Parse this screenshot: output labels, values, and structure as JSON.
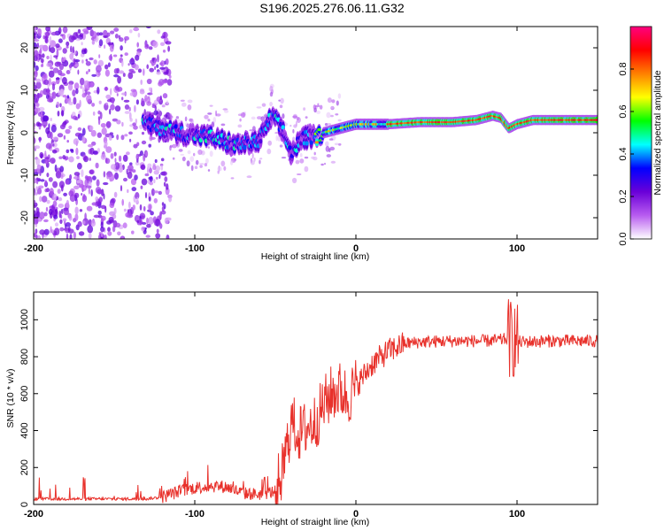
{
  "title": "S196.2025.276.06.11.G32",
  "chart_data": [
    {
      "type": "heatmap",
      "name": "spectrogram",
      "xlabel": "Height of straight line (km)",
      "ylabel": "Frequency (Hz)",
      "xlim": [
        -200,
        150
      ],
      "ylim": [
        -25,
        25
      ],
      "xticks": [
        "-200",
        "-100",
        "0",
        "100"
      ],
      "xtick_values": [
        -200,
        -100,
        0,
        100
      ],
      "yticks": [
        "-20",
        "-10",
        "0",
        "10",
        "20"
      ],
      "ytick_values": [
        -20,
        -10,
        0,
        10,
        20
      ],
      "colorbar": {
        "label": "Normalized spectral amplitude",
        "range": [
          0,
          1
        ],
        "ticks": [
          "0.0",
          "0.2",
          "0.4",
          "0.6",
          "0.8"
        ],
        "tick_values": [
          0.0,
          0.2,
          0.4,
          0.6,
          0.8
        ],
        "colors": [
          "#ffffff",
          "#b85cf0",
          "#6a00d8",
          "#0000ff",
          "#00ffff",
          "#00ff00",
          "#ffff00",
          "#ff8000",
          "#ff0000",
          "#ff0080"
        ]
      },
      "ridge": {
        "x": [
          -130,
          -110,
          -90,
          -75,
          -60,
          -52,
          -45,
          -40,
          -35,
          -30,
          -25,
          -20,
          -10,
          0,
          10,
          20,
          40,
          60,
          75,
          80,
          85,
          90,
          95,
          100,
          110,
          130,
          150
        ],
        "y": [
          2,
          0,
          -1,
          -3,
          -2,
          4,
          0,
          -5,
          -2,
          -1,
          -1,
          0,
          1,
          2,
          2,
          2,
          2.5,
          2.5,
          3,
          3.5,
          4,
          3.5,
          1,
          2,
          3,
          3,
          3
        ]
      }
    },
    {
      "type": "line",
      "name": "snr",
      "xlabel": "Height of straight line (km)",
      "ylabel": "SNR (10 * v/v)",
      "xlim": [
        -200,
        150
      ],
      "ylim": [
        0,
        1150
      ],
      "xticks": [
        "-200",
        "-100",
        "0",
        "100"
      ],
      "xtick_values": [
        -200,
        -100,
        0,
        100
      ],
      "yticks": [
        "0",
        "200",
        "400",
        "600",
        "800",
        "1000"
      ],
      "ytick_values": [
        0,
        200,
        400,
        600,
        800,
        1000
      ],
      "color": "#e8312b",
      "envelope": {
        "x": [
          -200,
          -160,
          -130,
          -120,
          -110,
          -100,
          -90,
          -80,
          -70,
          -60,
          -50,
          -45,
          -40,
          -35,
          -30,
          -25,
          -20,
          -15,
          -10,
          -5,
          0,
          5,
          10,
          20,
          30,
          40,
          60,
          80,
          90,
          95,
          98,
          100,
          105,
          120,
          150
        ],
        "y": [
          30,
          30,
          30,
          40,
          70,
          90,
          100,
          95,
          60,
          55,
          70,
          200,
          450,
          380,
          420,
          450,
          540,
          600,
          620,
          580,
          640,
          700,
          760,
          830,
          870,
          880,
          885,
          885,
          890,
          900,
          900,
          880,
          880,
          885,
          885
        ]
      }
    }
  ]
}
